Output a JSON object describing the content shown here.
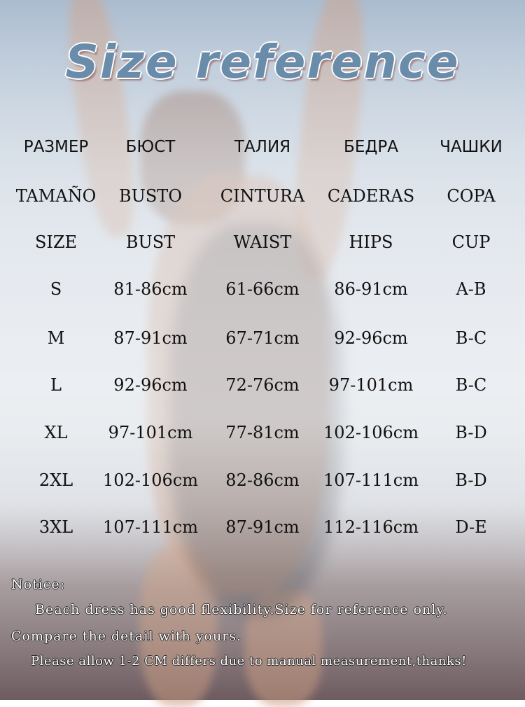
{
  "title": "Size reference",
  "headers": {
    "ru": [
      "РАЗМЕР",
      "БЮСТ",
      "ТАЛИЯ",
      "БЕДРА",
      "ЧАШКИ"
    ],
    "es": [
      "TAMAÑO",
      "BUSTO",
      "CINTURA",
      "CADERAS",
      "COPA"
    ],
    "en": [
      "SIZE",
      "BUST",
      "WAIST",
      "HIPS",
      "CUP"
    ]
  },
  "rows": [
    [
      "S",
      "81-86cm",
      "61-66cm",
      "86-91cm",
      "A-B"
    ],
    [
      "M",
      "87-91cm",
      "67-71cm",
      "92-96cm",
      "B-C"
    ],
    [
      "L",
      "92-96cm",
      "72-76cm",
      "97-101cm",
      "B-C"
    ],
    [
      "XL",
      "97-101cm",
      "77-81cm",
      "102-106cm",
      "B-D"
    ],
    [
      "2XL",
      "102-106cm",
      "82-86cm",
      "107-111cm",
      "B-D"
    ],
    [
      "3XL",
      "107-111cm",
      "87-91cm",
      "112-116cm",
      "D-E"
    ]
  ],
  "notice": {
    "label": "Notice:",
    "line1": "Beach dress has good flexibility.Size for reference only.",
    "line2": "Compare the detail with yours.",
    "line3": "Please allow 1-2 CM differs due to manual measurement,thanks!"
  }
}
